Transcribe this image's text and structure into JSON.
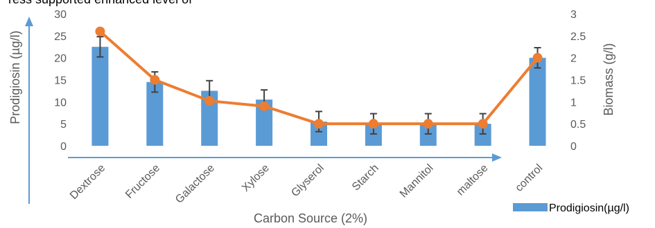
{
  "header_fragment": "ress supported enhanced level of",
  "chart_data": {
    "type": "bar",
    "categories": [
      "Dextrose",
      "Fructose",
      "Galactose",
      "Xylose",
      "Glyserol",
      "Starch",
      "Mannitol",
      "maltose",
      "control"
    ],
    "series": [
      {
        "name": "Prodigiosin(µg/l)",
        "type": "bar",
        "axis": "left",
        "values": [
          22.5,
          14.5,
          12.5,
          10.5,
          5.5,
          5,
          5,
          5,
          20
        ],
        "error": [
          2.3,
          2.3,
          2.3,
          2.2,
          2.3,
          2.3,
          2.3,
          2.3,
          2.3
        ],
        "color": "#5b9bd5"
      },
      {
        "type": "line",
        "axis": "right",
        "values": [
          2.6,
          1.5,
          1.02,
          0.9,
          0.5,
          0.5,
          0.5,
          0.5,
          2.0
        ],
        "color": "#ed7d31"
      }
    ],
    "xlabel": "Carbon Source (2%)",
    "ylabel_left": "Prodigiosin (µg/l)",
    "ylabel_right": "Biomass (g/l)",
    "ylim_left": [
      0,
      30
    ],
    "ylim_right": [
      0,
      3
    ],
    "yticks_left": [
      "0",
      "5",
      "10",
      "15",
      "20",
      "25",
      "30"
    ],
    "yticks_right": [
      "0",
      "0.5",
      "1",
      "1.5",
      "2",
      "2.5",
      "3"
    ],
    "legend_label": "Prodigiosin(µg/l)",
    "legend_position": "bottom-right",
    "grid": false,
    "arrow_color": "#5b9bd5",
    "error_color": "#404040"
  }
}
